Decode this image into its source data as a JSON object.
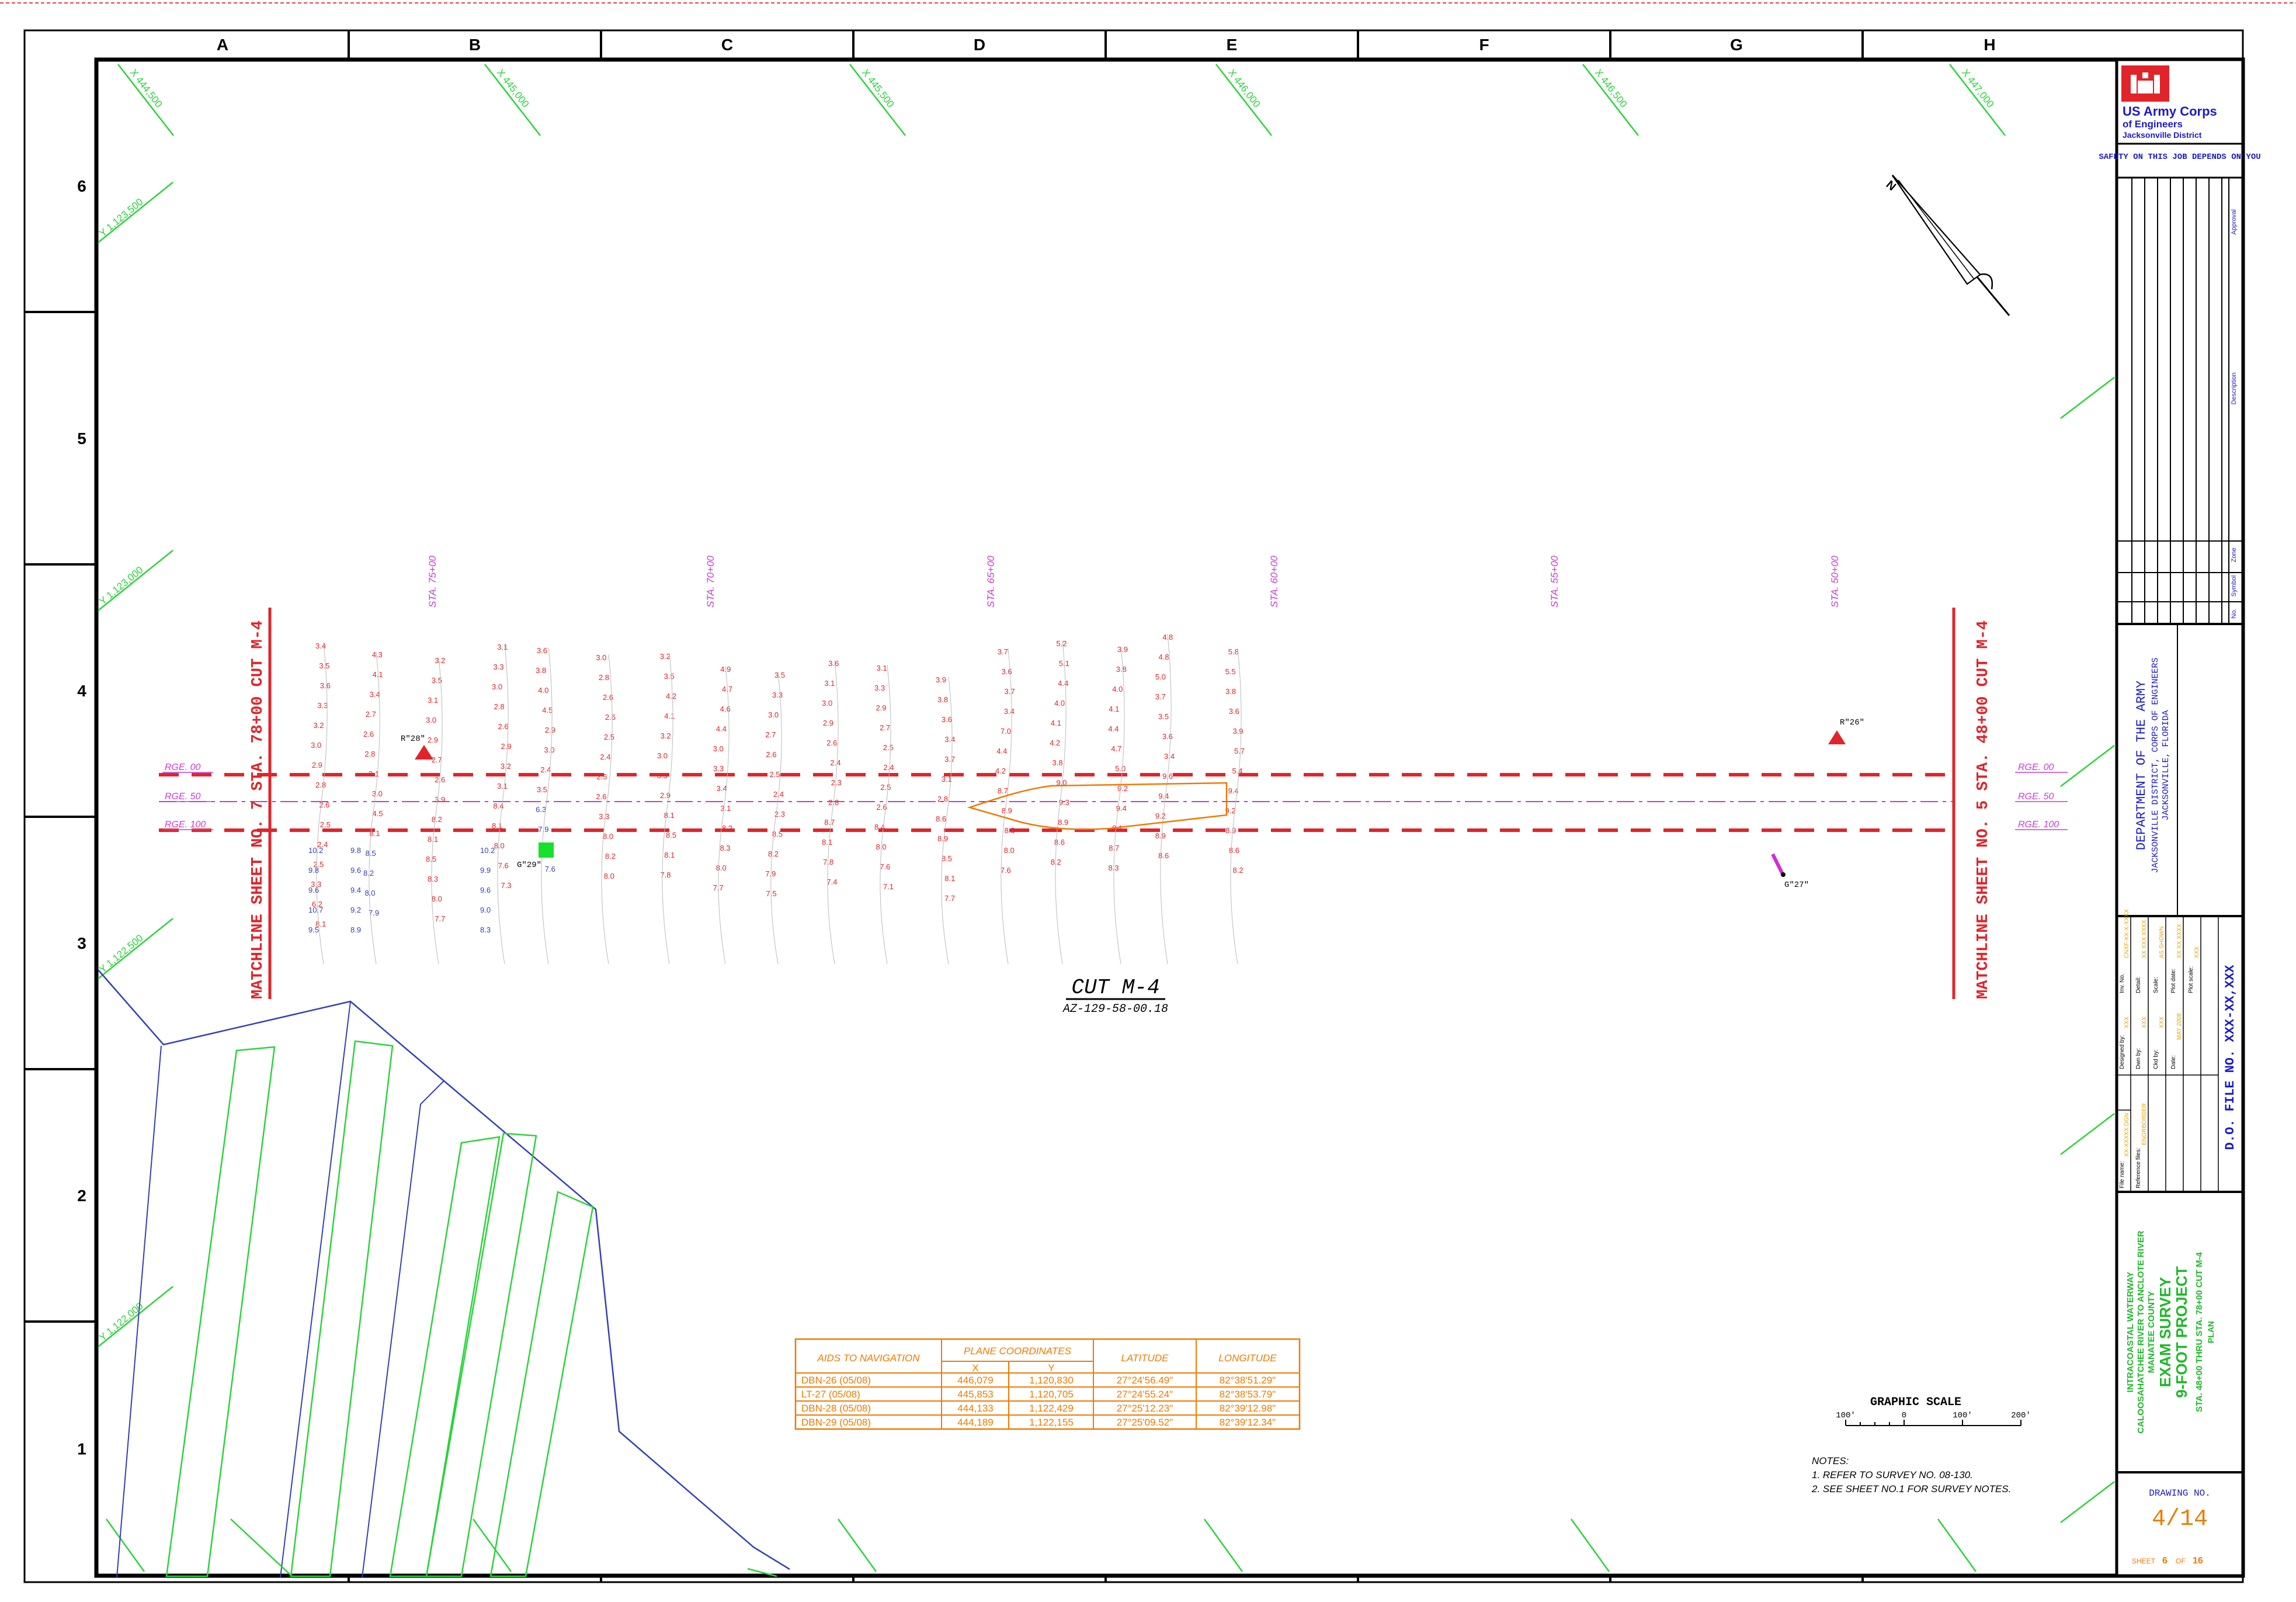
{
  "grid": {
    "columns": [
      "A",
      "B",
      "C",
      "D",
      "E",
      "F",
      "G",
      "H"
    ],
    "rows": [
      "6",
      "5",
      "4",
      "3",
      "2",
      "1"
    ]
  },
  "coord_labels": {
    "x": [
      "X 444,500",
      "X 445,000",
      "X 445,500",
      "X 446,000",
      "X 446,500",
      "X 447,000"
    ],
    "y": [
      "Y 1,123,500",
      "Y 1,123,000",
      "Y 1,122,500",
      "Y 1,122,000"
    ]
  },
  "stations": [
    "STA. 75+00",
    "STA. 70+00",
    "STA. 65+00",
    "STA. 60+00",
    "STA. 55+00",
    "STA. 50+00"
  ],
  "range_labels": [
    "RGE. 00",
    "RGE. 50",
    "RGE. 100"
  ],
  "matchline_left": "MATCHLINE SHEET NO. 7 STA. 78+00 CUT M-4",
  "matchline_right": "MATCHLINE SHEET NO. 5 STA. 48+00 CUT M-4",
  "cut_title": "CUT M-4",
  "cut_subtitle": "AZ-129-58-00.18",
  "markers": [
    "R\"28\"",
    "G\"29\"",
    "R\"26\"",
    "G\"27\""
  ],
  "nav_table": {
    "headers": [
      "AIDS TO NAVIGATION",
      "PLANE COORDINATES",
      "LATITUDE",
      "LONGITUDE"
    ],
    "subheaders": [
      "X",
      "Y"
    ],
    "rows": [
      [
        "DBN-26 (05/08)",
        "446,079",
        "1,120,830",
        "27°24'56.49\"",
        "82°38'51.29\""
      ],
      [
        "LT-27 (05/08)",
        "445,853",
        "1,120,705",
        "27°24'55.24\"",
        "82°38'53.79\""
      ],
      [
        "DBN-28 (05/08)",
        "444,133",
        "1,122,429",
        "27°25'12.23\"",
        "82°39'12.98\""
      ],
      [
        "DBN-29 (05/08)",
        "444,189",
        "1,122,155",
        "27°25'09.52\"",
        "82°39'12.34\""
      ]
    ]
  },
  "graphic_scale": {
    "title": "GRAPHIC SCALE",
    "ticks": [
      "100'",
      "0",
      "100'",
      "200'"
    ]
  },
  "notes": {
    "title": "NOTES:",
    "items": [
      "1. REFER TO SURVEY NO. 08-130.",
      "2. SEE SHEET NO.1 FOR SURVEY NOTES."
    ]
  },
  "title_block": {
    "org_line1": "US Army Corps",
    "org_line2": "of Engineers",
    "org_line3": "Jacksonville District",
    "safety": "SAFETY ON THIS JOB DEPENDS ON YOU",
    "revision_headers": [
      "Approval",
      "Description",
      "Zone",
      "Symbol",
      "No."
    ],
    "dept_line1": "DEPARTMENT OF THE ARMY",
    "dept_line2": "JACKSONVILLE DISTRICT, CORPS OF ENGINEERS",
    "dept_line3": "JACKSONVILLE, FLORIDA",
    "project_line1": "INTRACOASTAL WATERWAY",
    "project_line2": "CALOOSAHATCHEE RIVER TO ANCLOTE RIVER",
    "project_line3": "MANATEE COUNTY",
    "project_line4": "EXAM SURVEY",
    "project_line5": "9-FOOT PROJECT",
    "project_line6": "STA. 48+00 THRU STA. 78+00 CUT M-4",
    "project_line7": "PLAN",
    "file_no": "D.O. FILE NO. XXX-XX,XXX",
    "meta_labels": [
      "Designed by:",
      "Dwn by:",
      "Ckd by:",
      "Date:",
      "File name:",
      "Reference files:",
      "Inv. No.",
      "Detail:",
      "Scale:",
      "Plot date:",
      "Plot scale:"
    ],
    "meta_values": [
      "XXX",
      "XXX",
      "XXX",
      "MAY 2008",
      "XX-XXXXX.DGN",
      "ENGRBORDER",
      "CNXF-XX-X-XXXX",
      "XX XXX XXXX",
      "AS SHOWN",
      "XX XX XXXX",
      "XXX"
    ],
    "drawing_label": "DRAWING NO.",
    "drawing_no": "4/14",
    "sheet_label": "SHEET",
    "sheet_no": "6",
    "sheet_of": "OF",
    "sheet_total": "16"
  },
  "colors": {
    "survey_red": "#e0242a",
    "sounding_blue": "#3240b8",
    "grid_green": "#2bd33a",
    "station_magenta": "#c83bd4",
    "table_orange": "#f07a00",
    "title_blue": "#1a1ac8",
    "title_green": "#1fb82a"
  },
  "soundings": {
    "columns": [
      [
        "3.4",
        "3.5",
        "3.6",
        "3.3",
        "3.2",
        "3.0",
        "2.9",
        "2.8",
        "2.6",
        "2.5",
        "2.4",
        "2.5",
        "3.3",
        "6.2",
        "8.1"
      ],
      [
        "4.3",
        "4.1",
        "3.4",
        "2.7",
        "2.6",
        "2.8",
        "3.1",
        "3.0",
        "4.5",
        "8.1",
        "8.5",
        "8.2",
        "8.0",
        "7.9"
      ],
      [
        "3.2",
        "3.5",
        "3.1",
        "3.0",
        "2.9",
        "2.7",
        "2.6",
        "3.9",
        "8.2",
        "8.1",
        "8.5",
        "8.3",
        "8.0",
        "7.7"
      ],
      [
        "3.1",
        "3.3",
        "3.0",
        "2.8",
        "2.6",
        "2.9",
        "3.2",
        "3.1",
        "8.4",
        "8.1",
        "8.0",
        "7.6",
        "7.3"
      ],
      [
        "3.6",
        "3.8",
        "4.0",
        "4.5",
        "2.9",
        "3.0",
        "2.4",
        "3.5",
        "6.3",
        "7.9",
        "8.1",
        "7.6"
      ],
      [
        "3.0",
        "2.8",
        "2.6",
        "2.6",
        "2.5",
        "2.4",
        "2.5",
        "2.6",
        "3.3",
        "8.0",
        "8.2",
        "8.0"
      ],
      [
        "3.2",
        "3.5",
        "4.2",
        "4.1",
        "3.2",
        "3.0",
        "3.3",
        "2.9",
        "8.1",
        "8.5",
        "8.1",
        "7.8"
      ],
      [
        "4.9",
        "4.7",
        "4.6",
        "4.4",
        "3.0",
        "3.3",
        "3.4",
        "3.1",
        "8.2",
        "8.3",
        "8.0",
        "7.7"
      ],
      [
        "3.5",
        "3.3",
        "3.0",
        "2.7",
        "2.6",
        "2.5",
        "2.4",
        "2.3",
        "8.5",
        "8.2",
        "7.9",
        "7.5"
      ],
      [
        "3.6",
        "3.1",
        "3.0",
        "2.9",
        "2.6",
        "2.4",
        "2.3",
        "2.8",
        "8.7",
        "8.1",
        "7.8",
        "7.4"
      ],
      [
        "3.1",
        "3.3",
        "2.9",
        "2.7",
        "2.5",
        "2.4",
        "2.5",
        "2.6",
        "8.4",
        "8.0",
        "7.6",
        "7.1"
      ],
      [
        "3.9",
        "3.8",
        "3.6",
        "3.4",
        "3.7",
        "3.1",
        "2.8",
        "8.6",
        "8.9",
        "8.5",
        "8.1",
        "7.7"
      ],
      [
        "3.7",
        "3.6",
        "3.7",
        "3.4",
        "7.0",
        "4.4",
        "4.2",
        "8.7",
        "8.9",
        "8.3",
        "8.0",
        "7.6"
      ],
      [
        "5.2",
        "5.1",
        "4.4",
        "4.0",
        "4.1",
        "4.2",
        "3.8",
        "9.0",
        "9.3",
        "8.9",
        "8.6",
        "8.2"
      ],
      [
        "3.9",
        "3.8",
        "4.0",
        "4.1",
        "4.4",
        "4.7",
        "5.0",
        "9.2",
        "9.4",
        "9.1",
        "8.7",
        "8.3"
      ],
      [
        "4.8",
        "4.8",
        "5.0",
        "3.7",
        "3.5",
        "3.6",
        "3.4",
        "9.6",
        "9.4",
        "9.2",
        "8.9",
        "8.6"
      ],
      [
        "5.8",
        "5.5",
        "3.8",
        "3.6",
        "3.9",
        "5.7",
        "5.4",
        "9.4",
        "9.2",
        "8.9",
        "8.6",
        "8.2"
      ]
    ]
  }
}
